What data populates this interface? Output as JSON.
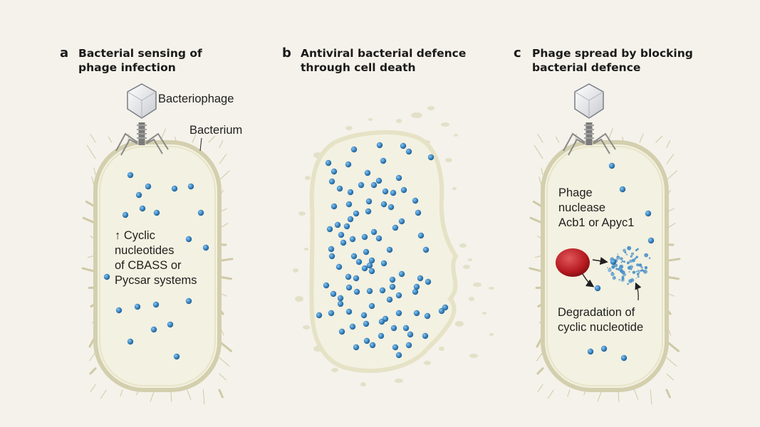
{
  "panels": [
    {
      "letter": "a",
      "title": "Bacterial sensing of\nphage infection",
      "labels": {
        "phage": "Bacteriophage",
        "bacterium": "Bacterium",
        "nucleotides": [
          "↑ Cyclic",
          "nucleotides",
          "of CBASS or",
          "Pycsar systems"
        ]
      }
    },
    {
      "letter": "b",
      "title": "Antiviral bacterial defence\nthrough cell death"
    },
    {
      "letter": "c",
      "title": "Phage spread by blocking\nbacterial defence",
      "labels": {
        "nuclease": [
          "Phage",
          "nuclease",
          "Acb1 or Apyc1"
        ],
        "degradation": [
          "Degradation of",
          "cyclic nucleotide"
        ]
      }
    }
  ],
  "colors": {
    "background": "#f4f2ea",
    "cell_fill": "#f3f1e1",
    "cell_edge": "#d3cfae",
    "pili": "#cfc9a6",
    "nucleotide": "#4a90c8",
    "nuclease": "#c0262b",
    "phage_tail": "#8a8a8a"
  }
}
